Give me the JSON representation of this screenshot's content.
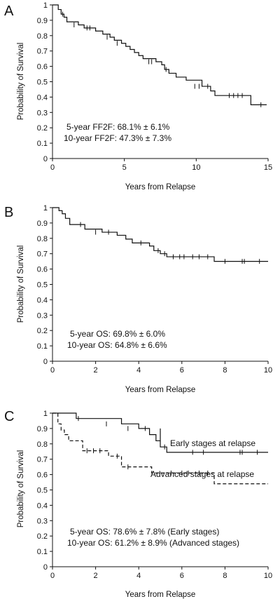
{
  "chart_data": [
    {
      "type": "line",
      "panel": "A",
      "xlabel": "Years from Relapse",
      "ylabel": "Probability of Survival",
      "xlim": [
        0,
        15
      ],
      "ylim": [
        0,
        1
      ],
      "xticks": [
        0,
        5,
        10,
        15
      ],
      "yticks": [
        0,
        0.1,
        0.2,
        0.3,
        0.4,
        0.5,
        0.6,
        0.7,
        0.8,
        0.9,
        1
      ],
      "annotations": [
        "5-year FF2F: 68.1% ± 6.1%",
        "10-year FF2F: 47.3% ± 7.3%"
      ],
      "series": [
        {
          "style": "solid",
          "steps": [
            [
              0,
              1
            ],
            [
              0.4,
              0.97
            ],
            [
              0.6,
              0.94
            ],
            [
              0.8,
              0.92
            ],
            [
              1.0,
              0.89
            ],
            [
              1.8,
              0.87
            ],
            [
              2.2,
              0.85
            ],
            [
              3.0,
              0.83
            ],
            [
              3.5,
              0.81
            ],
            [
              4.0,
              0.79
            ],
            [
              4.3,
              0.77
            ],
            [
              4.8,
              0.75
            ],
            [
              5.1,
              0.73
            ],
            [
              5.4,
              0.71
            ],
            [
              5.7,
              0.69
            ],
            [
              6.0,
              0.67
            ],
            [
              6.3,
              0.65
            ],
            [
              7.2,
              0.63
            ],
            [
              7.6,
              0.61
            ],
            [
              7.8,
              0.58
            ],
            [
              8.1,
              0.555
            ],
            [
              8.6,
              0.53
            ],
            [
              9.3,
              0.51
            ],
            [
              10.4,
              0.47
            ],
            [
              11.0,
              0.44
            ],
            [
              11.3,
              0.41
            ],
            [
              13.8,
              0.35
            ],
            [
              14.9,
              0.35
            ]
          ],
          "censored": [
            [
              0.7,
              0.94
            ],
            [
              1.5,
              0.87
            ],
            [
              2.4,
              0.85
            ],
            [
              2.6,
              0.85
            ],
            [
              3.8,
              0.79
            ],
            [
              4.5,
              0.75
            ],
            [
              6.7,
              0.63
            ],
            [
              6.9,
              0.63
            ],
            [
              7.9,
              0.58
            ],
            [
              9.9,
              0.47
            ],
            [
              10.2,
              0.47
            ],
            [
              10.8,
              0.47
            ],
            [
              12.3,
              0.41
            ],
            [
              12.6,
              0.41
            ],
            [
              12.9,
              0.41
            ],
            [
              13.2,
              0.41
            ],
            [
              14.5,
              0.35
            ]
          ]
        }
      ]
    },
    {
      "type": "line",
      "panel": "B",
      "xlabel": "Years from Relapse",
      "ylabel": "Probability of Survival",
      "xlim": [
        0,
        10
      ],
      "ylim": [
        0,
        1
      ],
      "xticks": [
        0,
        2,
        4,
        6,
        8,
        10
      ],
      "yticks": [
        0,
        0.1,
        0.2,
        0.3,
        0.4,
        0.5,
        0.6,
        0.7,
        0.8,
        0.9,
        1
      ],
      "annotations": [
        "5-year OS: 69.8% ± 6.0%",
        "10-year OS: 64.8% ± 6.6%"
      ],
      "series": [
        {
          "style": "solid",
          "steps": [
            [
              0,
              1
            ],
            [
              0.3,
              0.98
            ],
            [
              0.45,
              0.96
            ],
            [
              0.6,
              0.93
            ],
            [
              0.8,
              0.89
            ],
            [
              1.5,
              0.86
            ],
            [
              2.3,
              0.84
            ],
            [
              3.0,
              0.82
            ],
            [
              3.4,
              0.795
            ],
            [
              3.7,
              0.77
            ],
            [
              4.5,
              0.75
            ],
            [
              4.7,
              0.72
            ],
            [
              5.0,
              0.7
            ],
            [
              5.3,
              0.68
            ],
            [
              7.5,
              0.65
            ],
            [
              10,
              0.65
            ]
          ],
          "censored": [
            [
              1.3,
              0.89
            ],
            [
              2.0,
              0.84
            ],
            [
              2.6,
              0.84
            ],
            [
              4.1,
              0.77
            ],
            [
              4.9,
              0.72
            ],
            [
              5.2,
              0.7
            ],
            [
              5.6,
              0.68
            ],
            [
              5.9,
              0.68
            ],
            [
              6.1,
              0.68
            ],
            [
              6.5,
              0.68
            ],
            [
              6.8,
              0.68
            ],
            [
              7.2,
              0.68
            ],
            [
              8.0,
              0.65
            ],
            [
              8.8,
              0.65
            ],
            [
              8.9,
              0.65
            ],
            [
              9.6,
              0.65
            ]
          ]
        }
      ]
    },
    {
      "type": "line",
      "panel": "C",
      "xlabel": "Years from Relapse",
      "ylabel": "Probability of Survival",
      "xlim": [
        0,
        10
      ],
      "ylim": [
        0,
        1
      ],
      "xticks": [
        0,
        2,
        4,
        6,
        8,
        10
      ],
      "yticks": [
        0,
        0.1,
        0.2,
        0.3,
        0.4,
        0.5,
        0.6,
        0.7,
        0.8,
        0.9,
        1
      ],
      "annotations": [
        "5-year OS: 78.6% ± 7.8% (Early stages)",
        "10-year OS: 61.2% ± 8.9% (Advanced stages)"
      ],
      "series": [
        {
          "name": "Early stages at relapse",
          "style": "solid",
          "steps": [
            [
              0,
              1
            ],
            [
              1.1,
              0.965
            ],
            [
              3.2,
              0.93
            ],
            [
              5.0,
              0.9
            ],
            [
              4.0,
              0.9
            ],
            [
              4.5,
              0.86
            ],
            [
              4.8,
              0.82
            ],
            [
              5.0,
              0.78
            ],
            [
              5.3,
              0.745
            ],
            [
              10,
              0.745
            ]
          ],
          "censored": [
            [
              1.2,
              0.965
            ],
            [
              2.5,
              0.93
            ],
            [
              3.5,
              0.9
            ],
            [
              4.3,
              0.9
            ],
            [
              5.2,
              0.78
            ],
            [
              6.5,
              0.745
            ],
            [
              7.0,
              0.745
            ],
            [
              8.7,
              0.745
            ],
            [
              8.8,
              0.745
            ],
            [
              9.5,
              0.745
            ]
          ]
        },
        {
          "name": "Advanced stages at relapse",
          "style": "dashed",
          "steps": [
            [
              0,
              1
            ],
            [
              0.25,
              0.93
            ],
            [
              0.4,
              0.89
            ],
            [
              0.55,
              0.86
            ],
            [
              0.75,
              0.82
            ],
            [
              1.4,
              0.755
            ],
            [
              2.6,
              0.72
            ],
            [
              3.2,
              0.65
            ],
            [
              4.6,
              0.61
            ],
            [
              7.5,
              0.54
            ],
            [
              10,
              0.54
            ]
          ],
          "censored": [
            [
              1.6,
              0.755
            ],
            [
              1.9,
              0.755
            ],
            [
              2.2,
              0.755
            ],
            [
              3.0,
              0.72
            ],
            [
              3.5,
              0.65
            ],
            [
              5.5,
              0.61
            ],
            [
              6.0,
              0.61
            ],
            [
              6.3,
              0.61
            ],
            [
              6.8,
              0.61
            ],
            [
              7.2,
              0.61
            ]
          ]
        }
      ]
    }
  ]
}
